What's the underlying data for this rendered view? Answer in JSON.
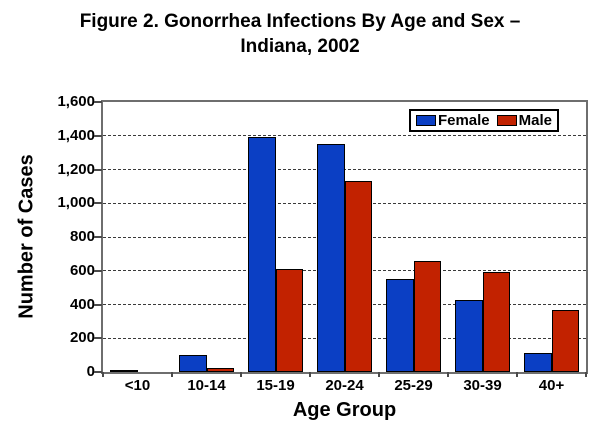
{
  "title": {
    "line1": "Figure 2. Gonorrhea Infections By Age and Sex –",
    "line2": "Indiana, 2002"
  },
  "chart_data": {
    "type": "bar",
    "title": "Figure 2. Gonorrhea Infections By Age and Sex – Indiana, 2002",
    "categories": [
      "<10",
      "10-14",
      "15-19",
      "20-24",
      "25-29",
      "30-39",
      "40+"
    ],
    "series": [
      {
        "name": "Female",
        "color": "#0B3FC4",
        "values": [
          10,
          100,
          1395,
          1350,
          550,
          425,
          110
        ]
      },
      {
        "name": "Male",
        "color": "#C22200",
        "values": [
          0,
          25,
          610,
          1130,
          660,
          590,
          365
        ]
      }
    ],
    "xlabel": "Age Group",
    "ylabel": "Number of Cases",
    "ylim": [
      0,
      1600
    ],
    "ytick_step": 200,
    "ytick_labels": [
      "0",
      "200",
      "400",
      "600",
      "800",
      "1,000",
      "1,200",
      "1,400",
      "1,600"
    ],
    "grid": true,
    "legend_position": "top-right",
    "bar_border_color": "#000000",
    "background_color": "#FFFFFF"
  }
}
